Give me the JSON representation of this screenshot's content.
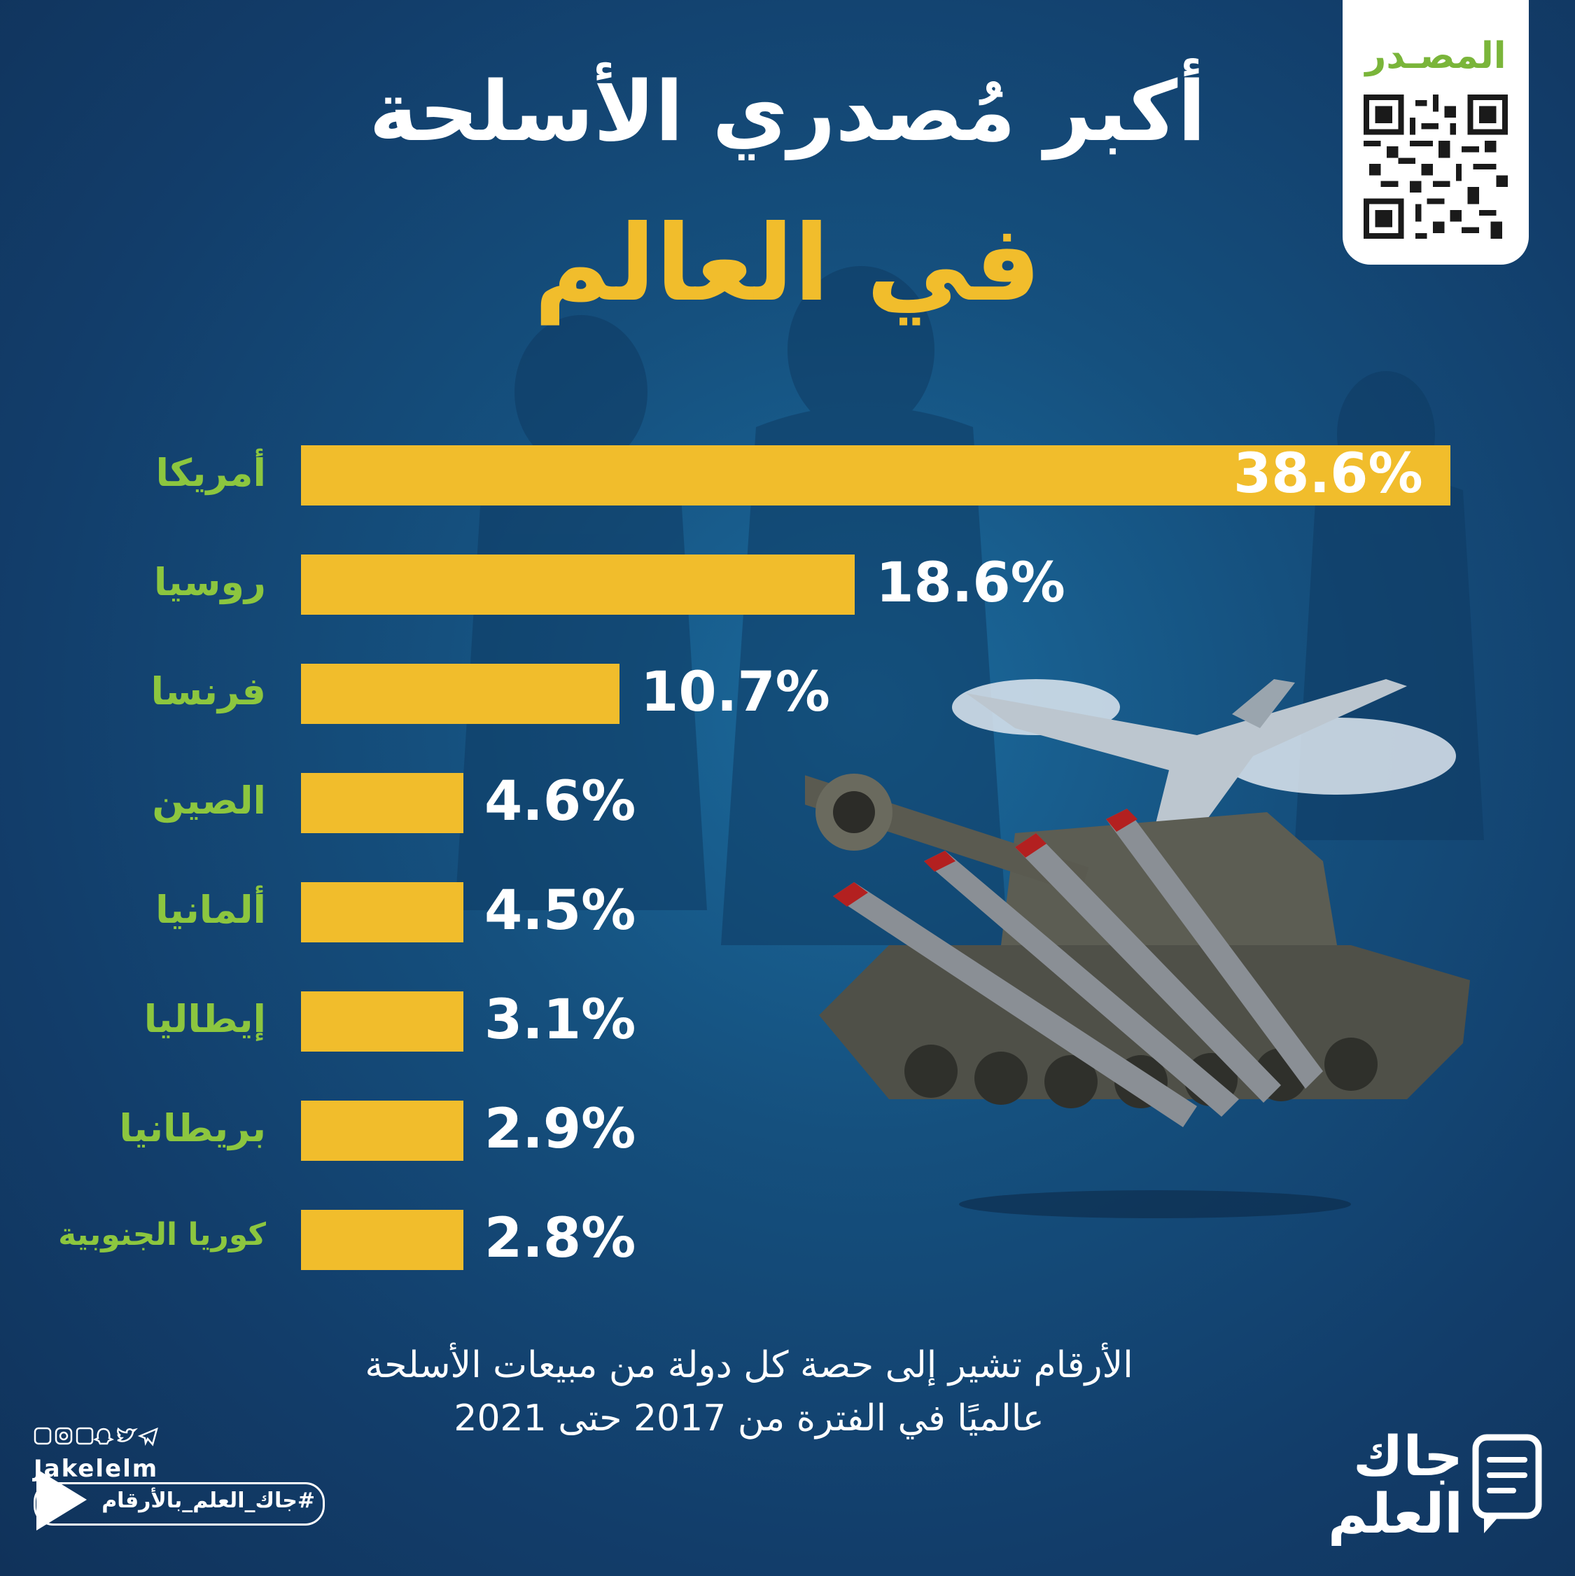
{
  "title": {
    "line1": "أكبر مُصدري الأسلحة",
    "line2": "في العالم"
  },
  "source": {
    "label": "المصـدر"
  },
  "chart_data": {
    "type": "bar",
    "orientation": "horizontal",
    "categories": [
      "أمريكا",
      "روسيا",
      "فرنسا",
      "الصين",
      "ألمانيا",
      "إيطاليا",
      "بريطانيا",
      "كوريا الجنوبية"
    ],
    "values": [
      38.6,
      18.6,
      10.7,
      4.6,
      4.5,
      3.1,
      2.9,
      2.8
    ],
    "value_labels": [
      "38.6%",
      "18.6%",
      "10.7%",
      "4.6%",
      "4.5%",
      "3.1%",
      "2.9%",
      "2.8%"
    ],
    "flags": [
      "us-flag-icon",
      "russia-flag-icon",
      "france-flag-icon",
      "china-flag-icon",
      "germany-flag-icon",
      "italy-flag-icon",
      "uk-flag-icon",
      "south-korea-flag-icon"
    ],
    "bar_color": "#f1bd2c",
    "label_color": "#8cc63f",
    "xlim": [
      0,
      38.6
    ]
  },
  "note": {
    "line1": "الأرقام تشير إلى حصة كل دولة من مبيعات الأسلحة",
    "line2": "عالميًا في الفترة من 2017 حتى 2021"
  },
  "footer": {
    "handle": "Jakelelm",
    "hashtag": "#جاك_العلم_بالأرقام",
    "logo_line1": "جاك",
    "logo_line2": "العلم",
    "social_icons": [
      "facebook-icon",
      "instagram-icon",
      "linkedin-icon",
      "snapchat-icon",
      "twitter-icon",
      "telegram-icon"
    ]
  }
}
